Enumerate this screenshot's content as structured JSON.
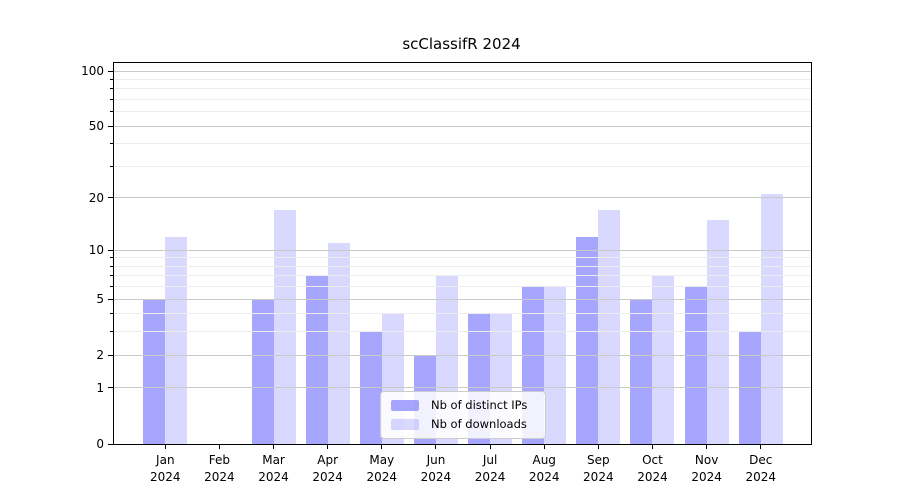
{
  "chart_data": {
    "type": "bar",
    "title": "scClassifR 2024",
    "categories": [
      "Jan",
      "Feb",
      "Mar",
      "Apr",
      "May",
      "Jun",
      "Jul",
      "Aug",
      "Sep",
      "Oct",
      "Nov",
      "Dec"
    ],
    "year_label": "2024",
    "series": [
      {
        "name": "Nb of distinct IPs",
        "color": "#8080ff",
        "opacity": 0.7,
        "values": [
          5,
          0,
          5,
          7,
          3,
          2,
          4,
          6,
          12,
          5,
          6,
          3
        ]
      },
      {
        "name": "Nb of downloads",
        "color": "#8080ff",
        "opacity": 0.3,
        "values": [
          12,
          0,
          17,
          11,
          4,
          7,
          4,
          6,
          17,
          7,
          15,
          21
        ]
      }
    ],
    "yscale": "log1p",
    "ylim": [
      0,
      110
    ],
    "yticks": [
      0,
      1,
      2,
      5,
      10,
      20,
      50,
      100
    ],
    "minor_yticks": [
      3,
      4,
      6,
      7,
      8,
      9,
      30,
      40,
      60,
      70,
      80,
      90
    ],
    "grid": "horizontal",
    "legend_position": "bottom-center",
    "colors": {
      "axis": "#000000",
      "grid_major": "#c9c9c9",
      "grid_minor": "#ececec",
      "background": "#ffffff",
      "legend_border": "#cccccc"
    }
  }
}
